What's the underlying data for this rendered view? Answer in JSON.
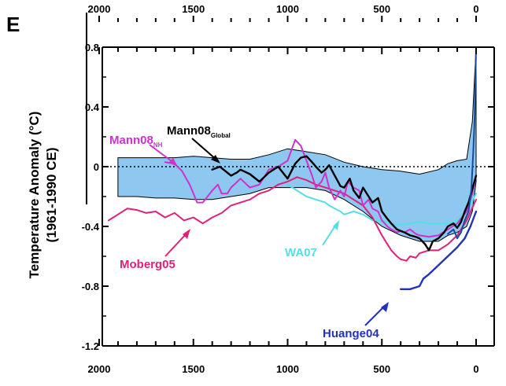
{
  "panel": {
    "letter": "E"
  },
  "colors": {
    "band_fill": "#8ec7ef",
    "mann08_global": "#000000",
    "mann08_nh": "#cc33cc",
    "moberg05": "#e0207a",
    "wa07": "#55dde8",
    "huange04": "#2233bb",
    "instrumental": "#1a4a9a"
  },
  "chart_data": {
    "type": "line",
    "title": "",
    "xlabel": "",
    "ylabel": "Temperature Anomaly (°C)",
    "ylabel_sub": "(1961-1990 CE)",
    "xlim": [
      2000,
      0
    ],
    "ylim": [
      -1.2,
      0.8
    ],
    "x_ticks": [
      "2000",
      "1500",
      "1000",
      "500",
      "0"
    ],
    "y_ticks": [
      "0.8",
      "0.4",
      "0",
      "-0.4",
      "-0.8",
      "-1.2"
    ],
    "zero_line": "dotted",
    "uncertainty_band": {
      "x": [
        1900,
        1800,
        1700,
        1600,
        1500,
        1400,
        1300,
        1200,
        1100,
        1000,
        900,
        800,
        700,
        600,
        500,
        400,
        300,
        200,
        150,
        100,
        50,
        20,
        0
      ],
      "upper": [
        0.06,
        0.06,
        0.06,
        0.06,
        0.07,
        0.06,
        0.05,
        0.05,
        0.08,
        0.12,
        0.1,
        0.08,
        0.03,
        0.0,
        -0.02,
        -0.03,
        -0.05,
        -0.02,
        0.02,
        0.04,
        0.05,
        0.3,
        0.8
      ],
      "lower": [
        -0.2,
        -0.2,
        -0.21,
        -0.21,
        -0.22,
        -0.22,
        -0.2,
        -0.18,
        -0.14,
        -0.14,
        -0.14,
        -0.16,
        -0.22,
        -0.3,
        -0.4,
        -0.46,
        -0.5,
        -0.5,
        -0.46,
        -0.44,
        -0.4,
        -0.3,
        -0.1
      ]
    },
    "series": [
      {
        "name": "Mann08Global",
        "x": [
          1400,
          1360,
          1330,
          1300,
          1270,
          1250,
          1200,
          1150,
          1100,
          1050,
          1000,
          960,
          930,
          900,
          870,
          850,
          820,
          800,
          780,
          750,
          720,
          700,
          670,
          650,
          620,
          600,
          570,
          550,
          520,
          500,
          470,
          450,
          420,
          400,
          380,
          350,
          320,
          300,
          270,
          250,
          230,
          200,
          170,
          150,
          120,
          100,
          80,
          60,
          40,
          20,
          0
        ],
        "y": [
          -0.02,
          0.0,
          -0.03,
          -0.06,
          -0.04,
          -0.02,
          -0.05,
          -0.1,
          -0.04,
          0.0,
          -0.08,
          0.02,
          0.06,
          0.07,
          0.03,
          0.0,
          -0.04,
          -0.02,
          0.01,
          -0.06,
          -0.13,
          -0.14,
          -0.08,
          -0.16,
          -0.21,
          -0.14,
          -0.2,
          -0.24,
          -0.21,
          -0.3,
          -0.35,
          -0.38,
          -0.42,
          -0.43,
          -0.44,
          -0.46,
          -0.47,
          -0.48,
          -0.52,
          -0.56,
          -0.5,
          -0.48,
          -0.44,
          -0.4,
          -0.38,
          -0.41,
          -0.37,
          -0.3,
          -0.24,
          -0.15,
          -0.06
        ]
      },
      {
        "name": "Mann08NH",
        "x": [
          1650,
          1600,
          1560,
          1520,
          1500,
          1480,
          1450,
          1400,
          1370,
          1350,
          1320,
          1300,
          1250,
          1200,
          1150,
          1100,
          1050,
          1000,
          960,
          930,
          900,
          870,
          850,
          820,
          800,
          780,
          750,
          720,
          700,
          680,
          650,
          620,
          600,
          570,
          550,
          520,
          500,
          470,
          450,
          420,
          400,
          380,
          350,
          320,
          300,
          250,
          200,
          150,
          100,
          50,
          20,
          0
        ],
        "y": [
          0.03,
          0.02,
          -0.03,
          -0.12,
          -0.18,
          -0.24,
          -0.24,
          -0.16,
          -0.12,
          -0.18,
          -0.18,
          -0.14,
          -0.08,
          -0.14,
          -0.12,
          -0.02,
          0.0,
          0.04,
          0.18,
          0.14,
          0.04,
          -0.06,
          -0.14,
          -0.1,
          -0.04,
          -0.14,
          -0.22,
          -0.16,
          -0.2,
          -0.1,
          -0.14,
          -0.16,
          -0.26,
          -0.22,
          -0.28,
          -0.3,
          -0.36,
          -0.4,
          -0.42,
          -0.44,
          -0.43,
          -0.44,
          -0.42,
          -0.45,
          -0.46,
          -0.47,
          -0.46,
          -0.42,
          -0.38,
          -0.3,
          -0.18,
          -0.06
        ]
      },
      {
        "name": "Moberg05",
        "x": [
          1950,
          1900,
          1850,
          1800,
          1750,
          1700,
          1650,
          1600,
          1550,
          1500,
          1450,
          1400,
          1350,
          1300,
          1250,
          1200,
          1150,
          1100,
          1050,
          1000,
          950,
          900,
          850,
          800,
          750,
          700,
          650,
          600,
          550,
          500,
          470,
          450,
          420,
          400,
          370,
          350,
          320,
          300,
          250,
          200,
          150,
          100,
          50,
          0
        ],
        "y": [
          -0.36,
          -0.32,
          -0.28,
          -0.29,
          -0.31,
          -0.3,
          -0.34,
          -0.31,
          -0.36,
          -0.34,
          -0.38,
          -0.34,
          -0.31,
          -0.26,
          -0.24,
          -0.22,
          -0.18,
          -0.16,
          -0.12,
          -0.1,
          -0.07,
          -0.09,
          -0.12,
          -0.14,
          -0.16,
          -0.18,
          -0.22,
          -0.26,
          -0.34,
          -0.46,
          -0.52,
          -0.56,
          -0.6,
          -0.62,
          -0.63,
          -0.6,
          -0.61,
          -0.58,
          -0.56,
          -0.56,
          -0.52,
          -0.46,
          -0.36,
          -0.22
        ]
      },
      {
        "name": "WA07",
        "x": [
          1000,
          950,
          900,
          850,
          800,
          780,
          750,
          720,
          700,
          650,
          600,
          550,
          500,
          450,
          400,
          350,
          300,
          250,
          200,
          150,
          100,
          50,
          0
        ],
        "y": [
          -0.12,
          -0.16,
          -0.2,
          -0.22,
          -0.24,
          -0.26,
          -0.28,
          -0.3,
          -0.32,
          -0.3,
          -0.32,
          -0.36,
          -0.36,
          -0.38,
          -0.39,
          -0.38,
          -0.37,
          -0.38,
          -0.38,
          -0.38,
          -0.36,
          -0.3,
          -0.18
        ]
      },
      {
        "name": "Huange04",
        "x": [
          400,
          350,
          300,
          280,
          250,
          200,
          150,
          100,
          60,
          30,
          0
        ],
        "y": [
          -0.82,
          -0.82,
          -0.8,
          -0.75,
          -0.72,
          -0.66,
          -0.6,
          -0.54,
          -0.48,
          -0.4,
          -0.3
        ]
      },
      {
        "name": "Instrumental",
        "x": [
          150,
          120,
          100,
          80,
          60,
          40,
          25,
          15,
          8,
          0
        ],
        "y": [
          -0.45,
          -0.42,
          -0.48,
          -0.44,
          -0.36,
          -0.3,
          -0.15,
          0.1,
          0.32,
          0.8
        ]
      }
    ]
  },
  "labels": {
    "mann08_global": "Mann08",
    "mann08_global_sub": "Global",
    "mann08_nh": "Mann08",
    "mann08_nh_sub": "NH",
    "moberg05": "Moberg05",
    "wa07": "WA07",
    "huange04": "Huange04"
  }
}
